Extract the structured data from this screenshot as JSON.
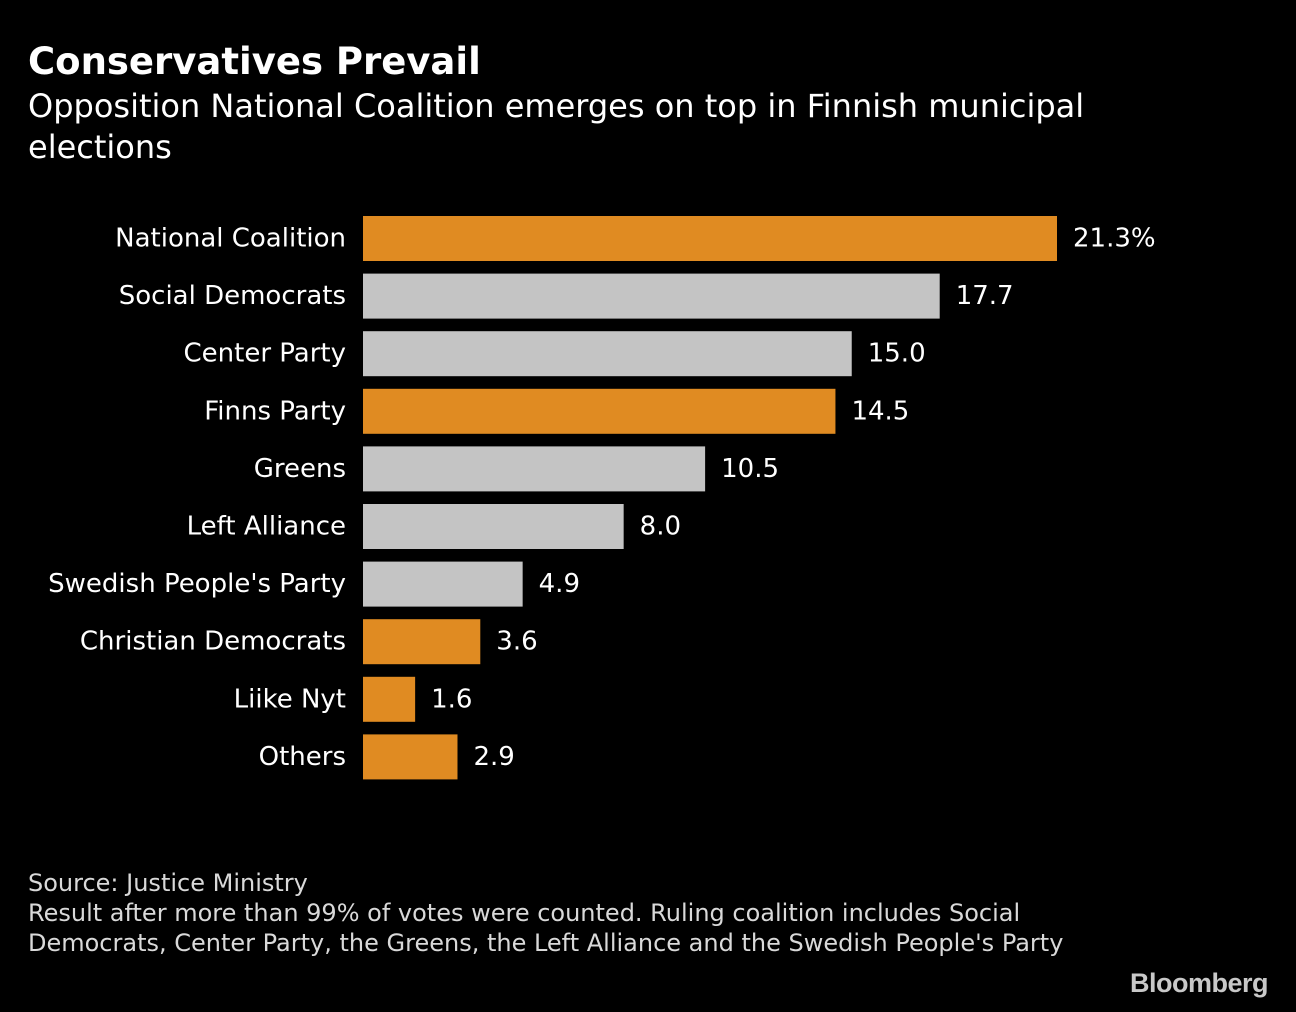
{
  "header": {
    "title": "Conservatives Prevail",
    "subtitle": "Opposition National Coalition emerges on top in Finnish municipal elections"
  },
  "chart_data": {
    "type": "bar",
    "orientation": "horizontal",
    "title": "Conservatives Prevail",
    "subtitle": "Opposition National Coalition emerges on top in Finnish municipal elections",
    "xlabel": "",
    "ylabel": "",
    "unit": "%",
    "xlim": [
      0,
      21.3
    ],
    "grid": false,
    "categories": [
      "National Coalition",
      "Social Democrats",
      "Center Party",
      "Finns Party",
      "Greens",
      "Left Alliance",
      "Swedish People's Party",
      "Christian Democrats",
      "Liike Nyt",
      "Others"
    ],
    "values": [
      21.3,
      17.7,
      15.0,
      14.5,
      10.5,
      8.0,
      4.9,
      3.6,
      1.6,
      2.9
    ],
    "value_labels": [
      "21.3%",
      "17.7",
      "15.0",
      "14.5",
      "10.5",
      "8.0",
      "4.9",
      "3.6",
      "1.6",
      "2.9"
    ],
    "groups": [
      "opposition",
      "ruling",
      "ruling",
      "opposition",
      "ruling",
      "ruling",
      "ruling",
      "opposition",
      "opposition",
      "opposition"
    ],
    "colors": {
      "opposition": "#e08b22",
      "ruling": "#c4c4c4",
      "label_text": "#ffffff"
    }
  },
  "footer": {
    "source": "Source: Justice Ministry",
    "note": "Result after more than 99% of votes were counted. Ruling coalition includes Social Democrats, Center Party, the Greens, the Left Alliance and the Swedish People's Party"
  },
  "brand": "Bloomberg"
}
